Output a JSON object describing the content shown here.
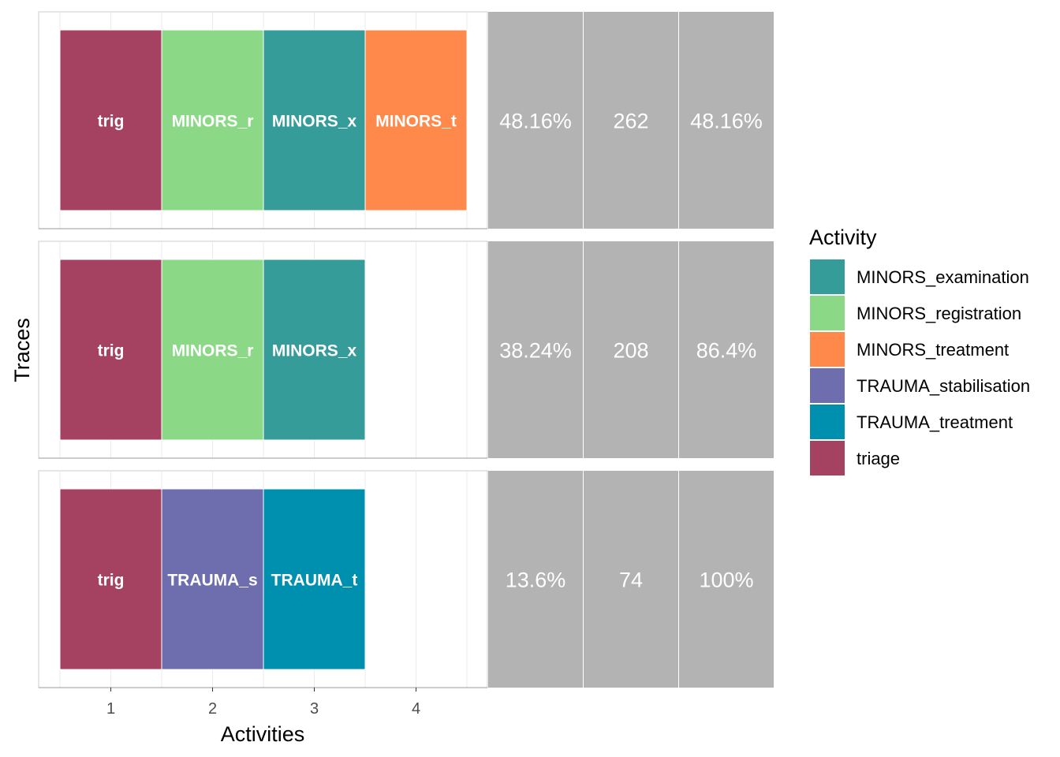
{
  "chart_data": {
    "type": "heatmap",
    "xlabel": "Activities",
    "ylabel": "Traces",
    "x_ticks": [
      "1",
      "2",
      "3",
      "4"
    ],
    "xlim": [
      0.5,
      4.5
    ],
    "legend": {
      "title": "Activity",
      "placement": "right",
      "entries": [
        {
          "name": "MINORS_examination",
          "color": "#369C9A"
        },
        {
          "name": "MINORS_registration",
          "color": "#8BD987"
        },
        {
          "name": "MINORS_treatment",
          "color": "#FE894B"
        },
        {
          "name": "TRAUMA_stabilisation",
          "color": "#6E6DAD"
        },
        {
          "name": "TRAUMA_treatment",
          "color": "#0090AF"
        },
        {
          "name": "triage",
          "color": "#A54161"
        }
      ]
    },
    "traces": [
      {
        "activities": [
          {
            "position": 1,
            "activity": "triage",
            "label": "trig"
          },
          {
            "position": 2,
            "activity": "MINORS_registration",
            "label": "MINORS_r"
          },
          {
            "position": 3,
            "activity": "MINORS_examination",
            "label": "MINORS_x"
          },
          {
            "position": 4,
            "activity": "MINORS_treatment",
            "label": "MINORS_t"
          }
        ],
        "relative_frequency": "48.16%",
        "absolute_frequency": "262",
        "cumulative_frequency": "48.16%"
      },
      {
        "activities": [
          {
            "position": 1,
            "activity": "triage",
            "label": "trig"
          },
          {
            "position": 2,
            "activity": "MINORS_registration",
            "label": "MINORS_r"
          },
          {
            "position": 3,
            "activity": "MINORS_examination",
            "label": "MINORS_x"
          }
        ],
        "relative_frequency": "38.24%",
        "absolute_frequency": "208",
        "cumulative_frequency": "86.4%"
      },
      {
        "activities": [
          {
            "position": 1,
            "activity": "triage",
            "label": "trig"
          },
          {
            "position": 2,
            "activity": "TRAUMA_stabilisation",
            "label": "TRAUMA_s"
          },
          {
            "position": 3,
            "activity": "TRAUMA_treatment",
            "label": "TRAUMA_t"
          }
        ],
        "relative_frequency": "13.6%",
        "absolute_frequency": "74",
        "cumulative_frequency": "100%"
      }
    ],
    "stat_fill": "#B3B3B3",
    "grid": true
  }
}
